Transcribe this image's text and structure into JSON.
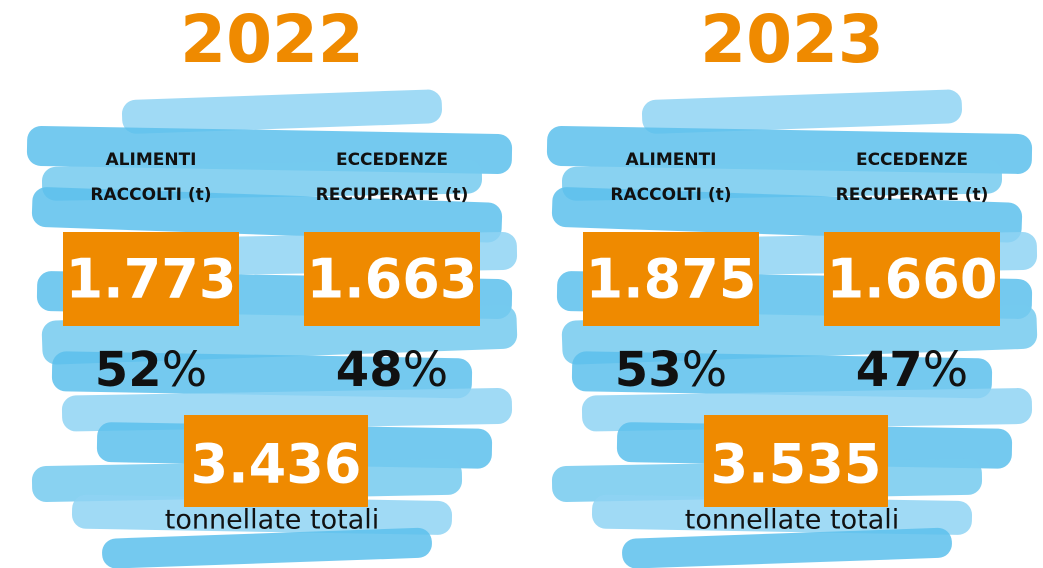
{
  "panels": [
    {
      "year": "2022",
      "items": [
        {
          "label": [
            "ALIMENTI",
            "RACCOLTI (t)"
          ],
          "value": "1.773",
          "share": "52",
          "share_unit": "%"
        },
        {
          "label": [
            "ECCEDENZE",
            "RECUPERATE (t)"
          ],
          "value": "1.663",
          "share": "48",
          "share_unit": "%"
        }
      ],
      "total": {
        "value": "3.436",
        "label": "tonnellate totali"
      }
    },
    {
      "year": "2023",
      "items": [
        {
          "label": [
            "ALIMENTI",
            "RACCOLTI (t)"
          ],
          "value": "1.875",
          "share": "53",
          "share_unit": "%"
        },
        {
          "label": [
            "ECCEDENZE",
            "RECUPERATE (t)"
          ],
          "value": "1.660",
          "share": "47",
          "share_unit": "%"
        }
      ],
      "total": {
        "value": "3.535",
        "label": "tonnellate totali"
      }
    }
  ]
}
